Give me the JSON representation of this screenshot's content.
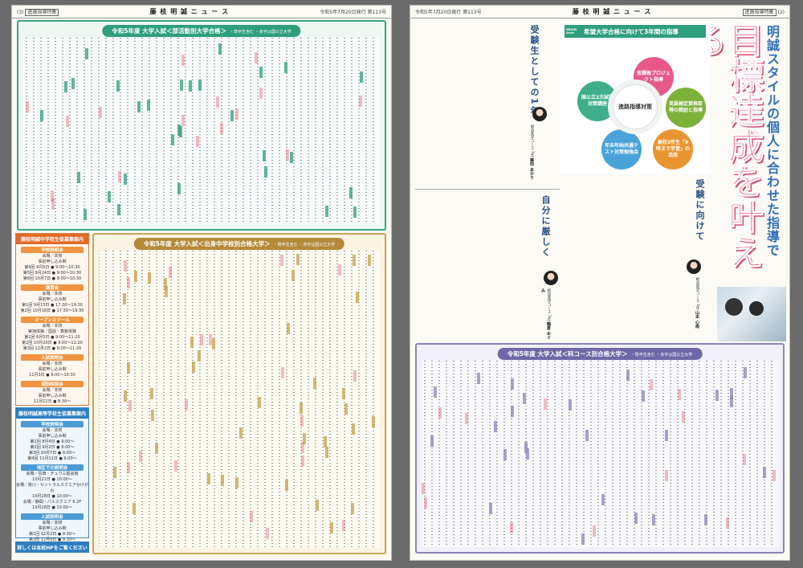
{
  "left_page": {
    "header": {
      "number": "(3)",
      "tag": "進路指導特集",
      "masthead": "藤 枝 明 誠 ニ ュ ー ス",
      "issue": "令和5年7月20日発行 第113号"
    },
    "club_box": {
      "title": "令和5年度 大学入試＜部活動別大学合格＞",
      "note": "・既卒生含む ・赤字は国公立大学"
    },
    "school_box": {
      "title": "令和5年度 大学入試＜出身中学校別合格大学＞",
      "note": "・既卒生含む ・赤字は国公立大学"
    },
    "jhs_info": {
      "title": "藤枝明誠中学校生徒募集案内",
      "sections": [
        {
          "name": "学校説明会",
          "lines": [
            "会場／本校",
            "事前申し込み制",
            "第4回 8月5日 ● 9:00〜10:30",
            "第5回 9月24日 ● 9:00〜10:30",
            "第6回 10月7日 ● 9:00〜10:30"
          ]
        },
        {
          "name": "講習会",
          "lines": [
            "会場／本校",
            "事前申し込み制",
            "第1回 9月13日 ● 17:30〜19:30",
            "第2回 10月18日 ● 17:30〜19:30"
          ]
        },
        {
          "name": "オープンスクール",
          "lines": [
            "会場／本校",
            "実演体験／国語・算数体験",
            "第1回 6月5日 ● 9:00〜11:20",
            "第2回 10月26日 ● 9:00〜11:20",
            "第3回 12月2日 ● 9:00〜11:20"
          ]
        },
        {
          "name": "入試説明会",
          "lines": [
            "会場／本校",
            "事前申し込み制",
            "11月3日 ● 9:00〜10:30"
          ]
        },
        {
          "name": "個別相談会",
          "lines": [
            "会場／本校",
            "事前申し込み制",
            "11月12日 ● 8:30〜"
          ]
        }
      ]
    },
    "hs_info": {
      "title": "藤枝明誠高等学校生徒募集案内",
      "sections": [
        {
          "name": "学校説明会",
          "lines": [
            "会場／本校",
            "事前申し込み制",
            "第1回 8月4日 ● 9:00〜",
            "第2回 9月2日 ● 9:00〜",
            "第3回 10月7日 ● 9:00〜",
            "第4回 11月11日 ● 9:00〜"
          ]
        },
        {
          "name": "地区での説明会",
          "lines": [
            "会場／島田・チュウ三縦会館",
            "10月21日 ● 10:00〜",
            "会場／掛川・セントラルスクエアかけがわ",
            "10月28日 ● 10:00〜",
            "会場／静岡・パルスクエア 6.2F",
            "10月28日 ● 10:00〜"
          ]
        },
        {
          "name": "入試説明会",
          "lines": [
            "会場／本校",
            "事前申し込み制",
            "第1回 12月2日 ● 9:30〜",
            "第2回 12月9日 ● 9:30〜",
            "第3回 12月16日 ● 9:30〜"
          ]
        }
      ]
    },
    "cta": "詳しくは本校HPをご覧ください"
  },
  "right_page": {
    "header": {
      "issue": "令和5年7月20日発行 第113号",
      "masthead": "藤 枝 明 誠 ニ ュ ー ス",
      "tag": "進路指導特集",
      "number": "(2)"
    },
    "headline_small": "明誠スタイルの個人に合わせた指導で",
    "headline_big": "目標達成を叶える",
    "diagram": {
      "title": "希望大学合格に向けて3年間の指導",
      "center": "進路指導対策",
      "items": [
        "放課後プロジェクト指導",
        "英語検定資格取得の奨励と指導",
        "高校3年生「9時まで学習」の活用",
        "年末年始共通テスト対策勉強会",
        "国公立2次試験対策講座"
      ]
    },
    "articles": [
      {
        "heading": "受験生としての1年",
        "name": "藤田 あかり",
        "role": "総合進学コース 3年"
      },
      {
        "heading": "自分に厳しく",
        "name": "鶴倉 めぐみ",
        "role": "総合進学コース 3年"
      },
      {
        "heading": "受験に向けて",
        "name": "山本 心南",
        "role": "総合進学コース 3年"
      }
    ],
    "course_box": {
      "title": "令和5年度 大学入試＜科コース別合格大学＞",
      "note": "・既卒生含む ・赤字は国公立大学"
    },
    "colors": {
      "green": "#2e9e7c",
      "gold": "#b48a3a",
      "purple": "#6f68a8",
      "pink": "#ee6a8a",
      "blue": "#2f7fbf",
      "orange": "#e06a2a"
    }
  }
}
